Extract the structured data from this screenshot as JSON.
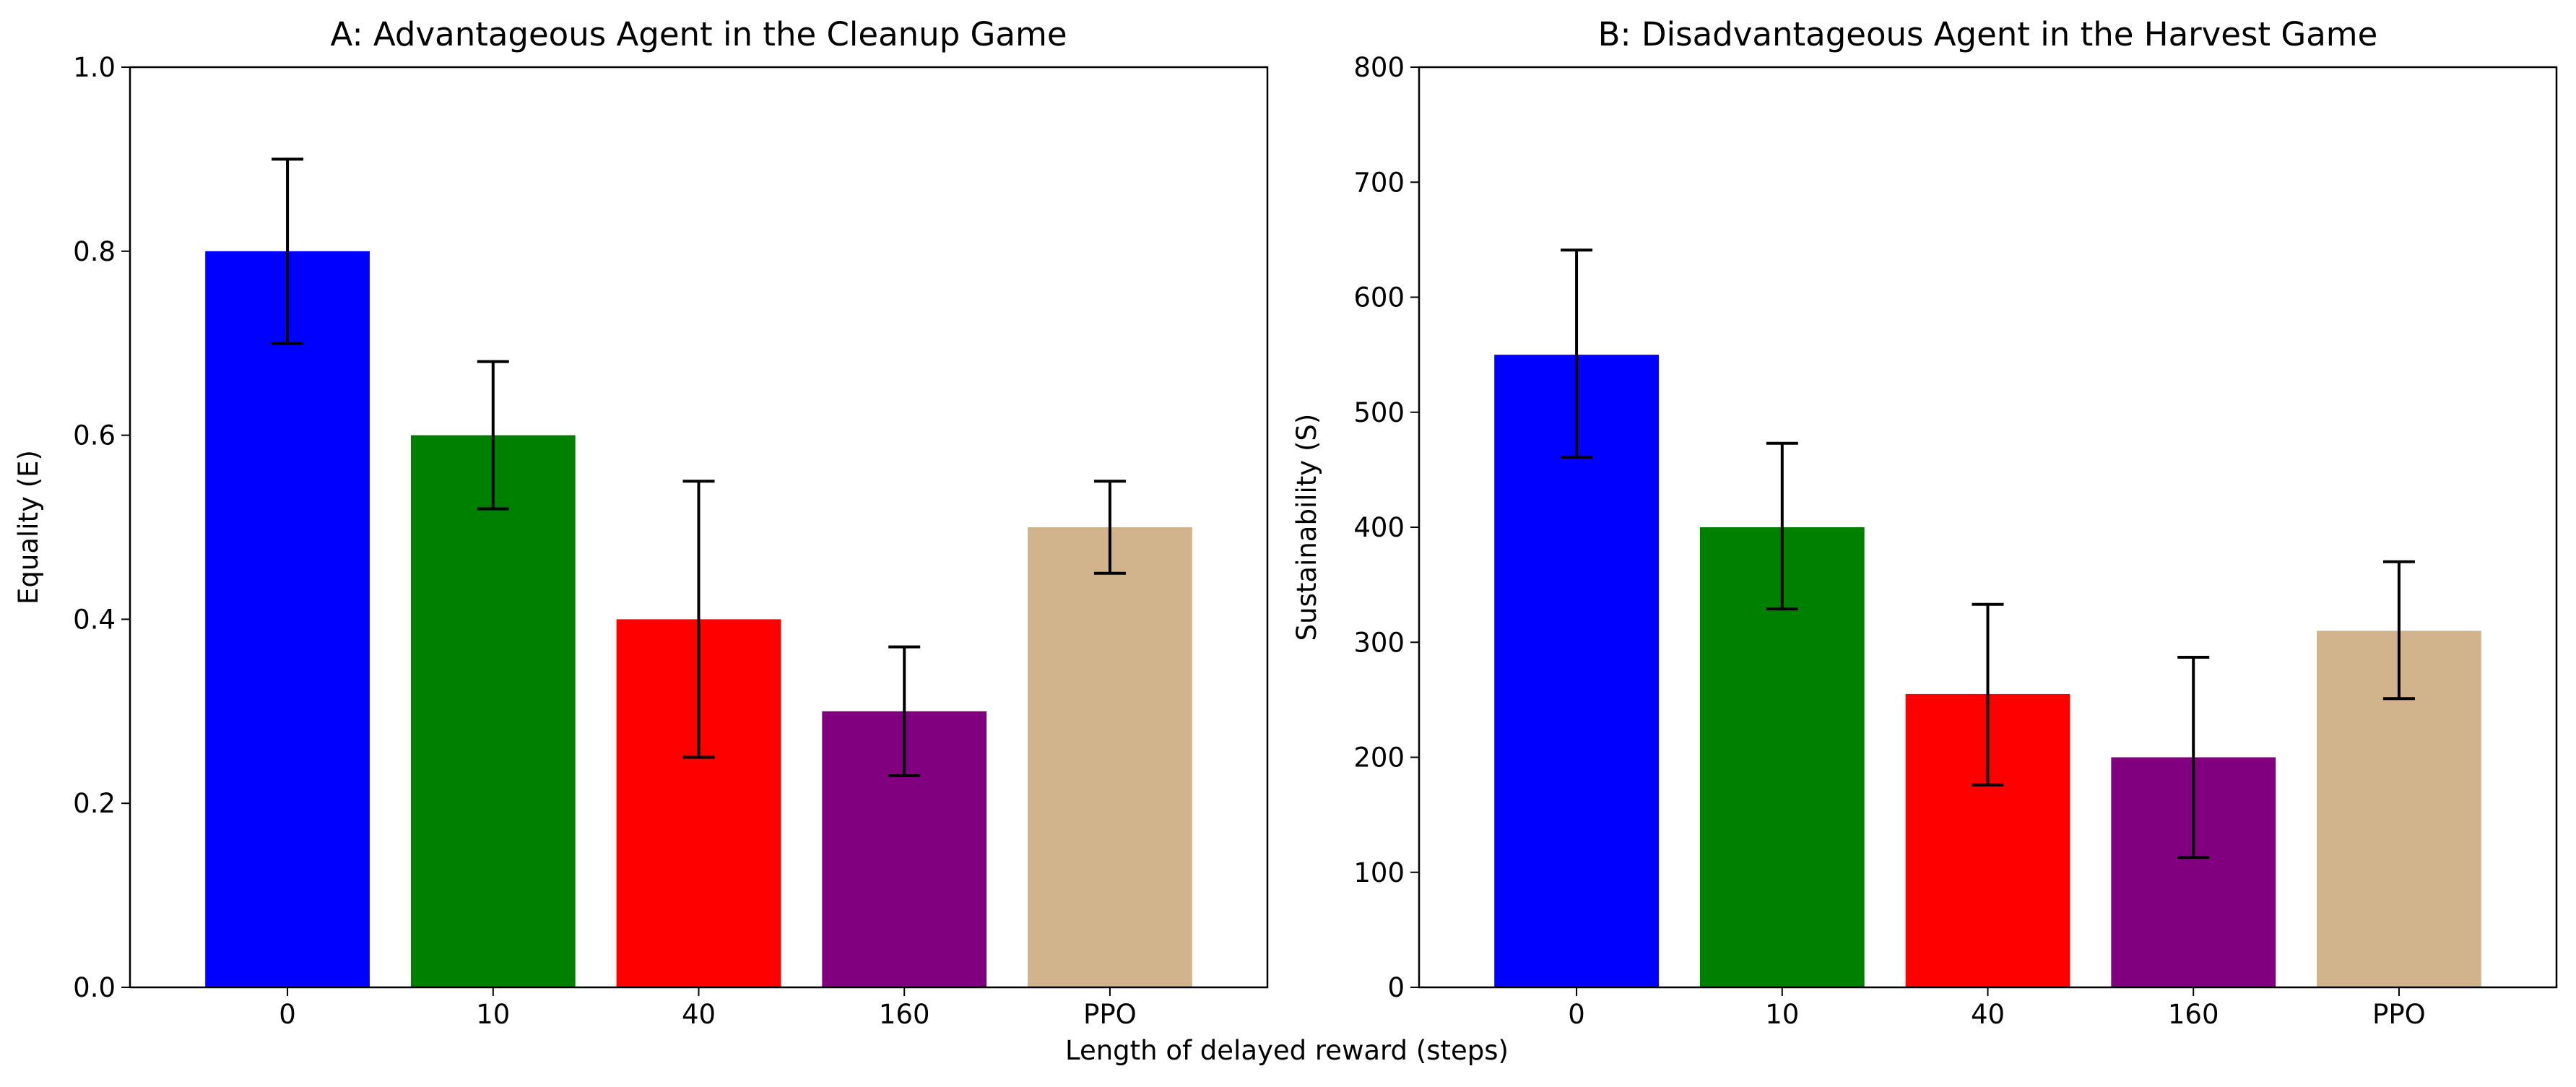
{
  "figure": {
    "shared_xlabel": "Length of delayed reward (steps)"
  },
  "chart_data": [
    {
      "type": "bar",
      "title": "A: Advantageous Agent in the Cleanup Game",
      "xlabel": "",
      "ylabel": "Equality (E)",
      "categories": [
        "0",
        "10",
        "40",
        "160",
        "PPO"
      ],
      "values": [
        0.8,
        0.6,
        0.4,
        0.3,
        0.5
      ],
      "error_low": [
        0.7,
        0.52,
        0.25,
        0.23,
        0.45
      ],
      "error_high": [
        0.9,
        0.68,
        0.55,
        0.37,
        0.55
      ],
      "colors": [
        "#0000ff",
        "#008000",
        "#ff0000",
        "#800080",
        "#d2b48c"
      ],
      "ylim": [
        0,
        1.0
      ],
      "yticks": [
        "0.0",
        "0.2",
        "0.4",
        "0.6",
        "0.8",
        "1.0"
      ],
      "grid": false
    },
    {
      "type": "bar",
      "title": "B: Disadvantageous Agent in the Harvest Game",
      "xlabel": "",
      "ylabel": "Sustainability (S)",
      "categories": [
        "0",
        "10",
        "40",
        "160",
        "PPO"
      ],
      "values": [
        550,
        400,
        255,
        200,
        310
      ],
      "error_low": [
        461,
        329,
        176,
        113,
        251
      ],
      "error_high": [
        641,
        473,
        333,
        287,
        370
      ],
      "colors": [
        "#0000ff",
        "#008000",
        "#ff0000",
        "#800080",
        "#d2b48c"
      ],
      "ylim": [
        0,
        800
      ],
      "yticks": [
        "0",
        "100",
        "200",
        "300",
        "400",
        "500",
        "600",
        "700",
        "800"
      ],
      "grid": false
    }
  ]
}
